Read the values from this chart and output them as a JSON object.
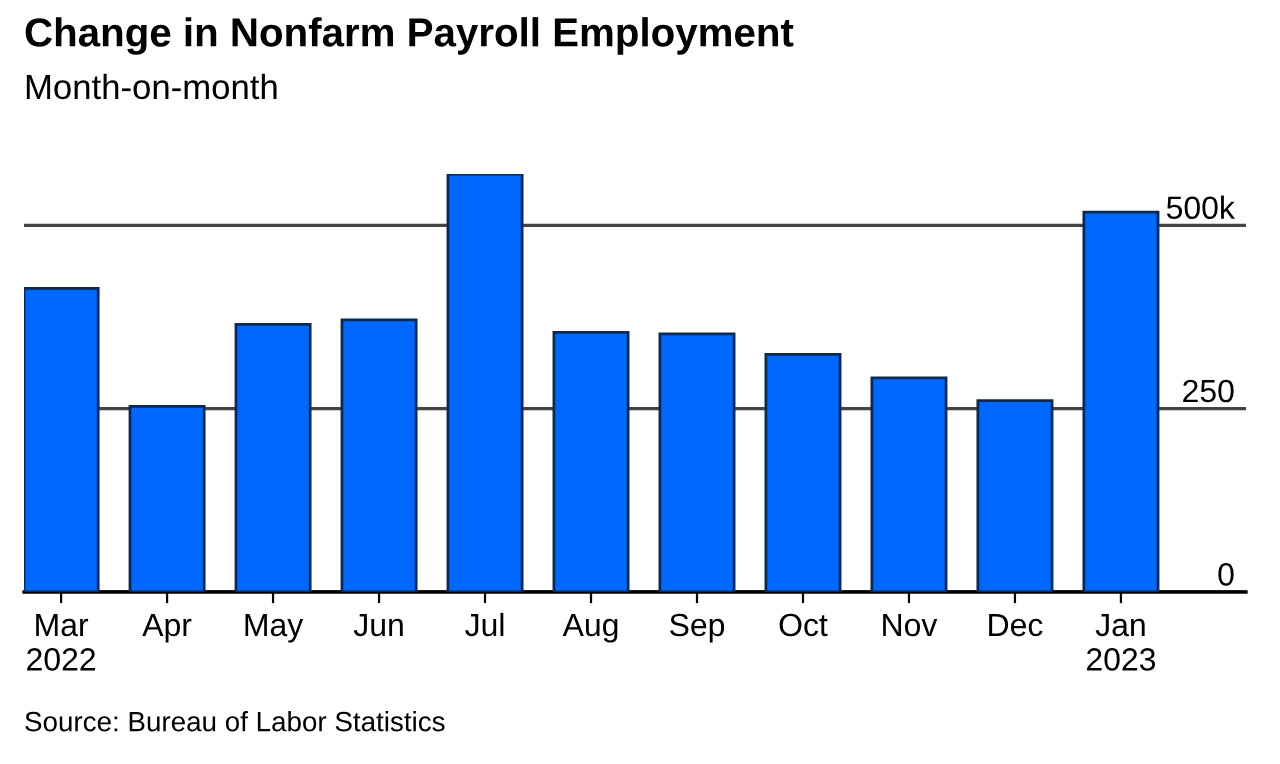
{
  "chart_data": {
    "type": "bar",
    "title": "Change in Nonfarm Payroll Employment",
    "subtitle": "Month-on-month",
    "categories": [
      "Mar\n2022",
      "Apr",
      "May",
      "Jun",
      "Jul",
      "Aug",
      "Sep",
      "Oct",
      "Nov",
      "Dec",
      "Jan\n2023"
    ],
    "values": [
      414,
      253,
      365,
      371,
      570,
      354,
      352,
      324,
      292,
      261,
      518
    ],
    "color": "#0068ff",
    "ylim": [
      0,
      570
    ],
    "yticks": [
      {
        "value": 0,
        "label": "0"
      },
      {
        "value": 250,
        "label": "250"
      },
      {
        "value": 500,
        "label": "500k"
      }
    ],
    "grid": "y",
    "legend": false,
    "annotations": [
      "Source: Bureau of Labor Statistics"
    ]
  }
}
